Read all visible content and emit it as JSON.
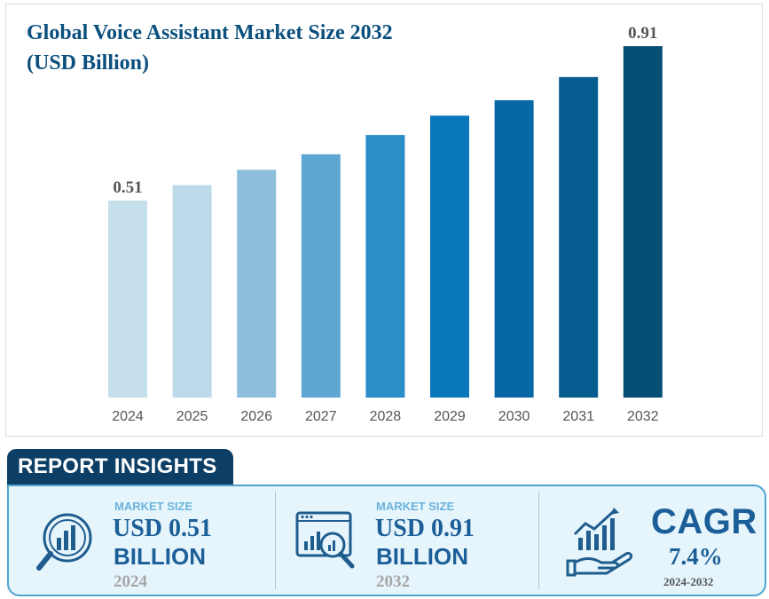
{
  "chart_data": {
    "type": "bar",
    "title": "Global Voice Assistant Market Size 2032 (USD Billion)",
    "categories": [
      "2024",
      "2025",
      "2026",
      "2027",
      "2028",
      "2029",
      "2030",
      "2031",
      "2032"
    ],
    "values": [
      0.51,
      0.55,
      0.59,
      0.63,
      0.68,
      0.73,
      0.77,
      0.83,
      0.91
    ],
    "value_labels": [
      "0.51",
      "",
      "",
      "",
      "",
      "",
      "",
      "",
      "0.91"
    ],
    "bar_colors": [
      "#c5dfec",
      "#bcdaea",
      "#8dbfdc",
      "#5fa7d3",
      "#2b8ec9",
      "#0a77bb",
      "#0868a6",
      "#075c8f",
      "#054f74"
    ],
    "xlabel": "",
    "ylabel": "",
    "ylim": [
      0,
      1
    ],
    "grid": false,
    "legend": "none"
  },
  "insights": {
    "header": "REPORT INSIGHTS",
    "cards": [
      {
        "label": "MARKET SIZE",
        "value": "USD 0.51",
        "unit": "BILLION",
        "year": "2024",
        "icon": "magnifier-chart-icon"
      },
      {
        "label": "MARKET SIZE",
        "value": "USD 0.91",
        "unit": "BILLION",
        "year": "2032",
        "icon": "dashboard-search-icon"
      }
    ],
    "cagr": {
      "title": "CAGR",
      "value": "7.4%",
      "range": "2024-2032",
      "icon": "hand-growth-chart-icon"
    }
  },
  "colors": {
    "title": "#0a4f7d",
    "accent": "#1c5f98",
    "tab": "#0d3f66",
    "panel_bg": "#e6f5fc",
    "panel_border": "#4ea3cf"
  }
}
